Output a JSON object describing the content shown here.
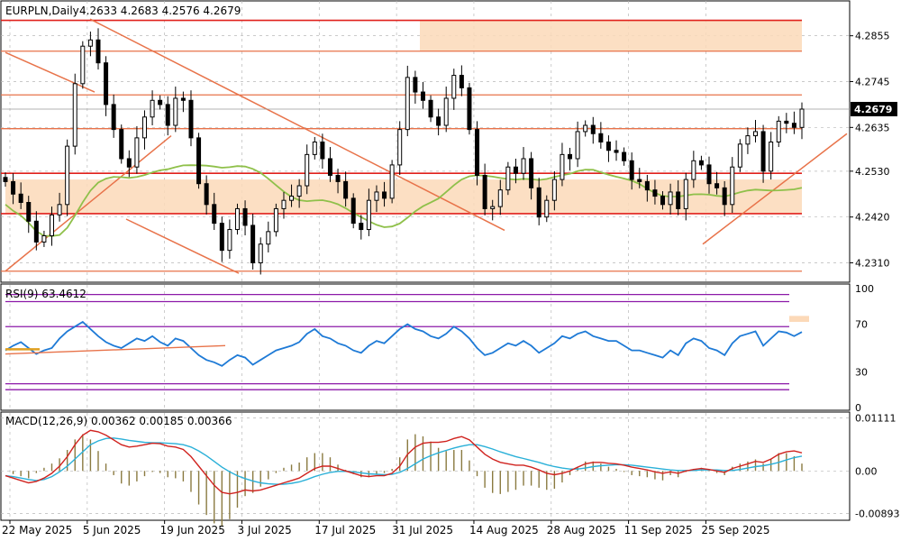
{
  "symbol_label": "EURPLN,Daily",
  "ohlc_label": "4.2633 4.2683 4.2576 4.2679",
  "colors": {
    "up": "#000000",
    "down": "#000000",
    "zone": "#fcd9b8",
    "level": "#e8734a",
    "red": "#e0201b",
    "ma": "#8fc04a",
    "rsi": "#1e7ad6",
    "purple": "#8c19a8",
    "macd_signal": "#2ab0d8",
    "macd_main": "#d0231f",
    "macd_hist": "#8a7a40",
    "grid": "#b8b8b8"
  },
  "chart_data": [
    {
      "type": "candlestick",
      "title": "EURPLN,Daily",
      "ylim": [
        4.227,
        4.293
      ],
      "y_ticks": [
        "4.2855",
        "4.2745",
        "4.2635",
        "4.2530",
        "4.2420",
        "4.2310"
      ],
      "current_price": "4.2679",
      "x_labels": [
        "22 May 2025",
        "5 Jun 2025",
        "19 Jun 2025",
        "3 Jul 2025",
        "17 Jul 2025",
        "31 Jul 2025",
        "14 Aug 2025",
        "28 Aug 2025",
        "11 Sep 2025",
        "25 Sep 2025"
      ],
      "close": [
        4.2505,
        4.2475,
        4.2455,
        4.241,
        4.236,
        4.2375,
        4.2425,
        4.245,
        4.259,
        4.274,
        4.283,
        4.2845,
        4.279,
        4.269,
        4.263,
        4.256,
        4.254,
        4.261,
        4.266,
        4.27,
        4.269,
        4.264,
        4.2705,
        4.27,
        4.261,
        4.25,
        4.245,
        4.2405,
        4.234,
        4.239,
        4.244,
        4.24,
        4.231,
        4.2355,
        4.2385,
        4.244,
        4.246,
        4.247,
        4.2495,
        4.257,
        4.26,
        4.256,
        4.252,
        4.2505,
        4.2465,
        4.2405,
        4.239,
        4.246,
        4.248,
        4.2465,
        4.2545,
        4.263,
        4.2755,
        4.272,
        4.27,
        4.266,
        4.264,
        4.2705,
        4.276,
        4.273,
        4.263,
        4.252,
        4.244,
        4.2445,
        4.2485,
        4.254,
        4.2525,
        4.256,
        4.249,
        4.242,
        4.246,
        4.251,
        4.257,
        4.256,
        4.2625,
        4.264,
        4.262,
        4.26,
        4.258,
        4.2575,
        4.2555,
        4.251,
        4.2505,
        4.2485,
        4.247,
        4.245,
        4.248,
        4.244,
        4.251,
        4.2555,
        4.2545,
        4.25,
        4.249,
        4.245,
        4.254,
        4.2595,
        4.2615,
        4.2625,
        4.253,
        4.26,
        4.265,
        4.2645,
        4.2635,
        4.2679
      ],
      "overlays": {
        "horizontal_levels": [
          4.2892,
          4.2818,
          4.2713,
          4.2632,
          4.2525,
          4.2428,
          4.229
        ],
        "resistance_zone": [
          4.2818,
          4.2892
        ],
        "support_zone": [
          4.2428,
          4.251
        ]
      }
    },
    {
      "type": "line",
      "title": "RSI(9) 63.4612",
      "ylim": [
        0,
        100
      ],
      "y_ticks": [
        "100",
        "70",
        "30",
        "0"
      ],
      "levels": [
        95,
        89,
        68,
        20,
        15
      ],
      "values": [
        48,
        52,
        55,
        50,
        45,
        48,
        50,
        58,
        64,
        68,
        72,
        66,
        60,
        55,
        52,
        50,
        54,
        58,
        56,
        60,
        55,
        52,
        58,
        56,
        50,
        44,
        40,
        38,
        35,
        40,
        44,
        42,
        36,
        40,
        44,
        48,
        50,
        52,
        55,
        62,
        66,
        60,
        58,
        54,
        52,
        48,
        46,
        52,
        56,
        54,
        60,
        66,
        70,
        66,
        64,
        60,
        58,
        62,
        68,
        64,
        58,
        50,
        44,
        46,
        50,
        54,
        52,
        56,
        52,
        46,
        50,
        54,
        60,
        58,
        62,
        64,
        60,
        58,
        56,
        56,
        52,
        48,
        48,
        46,
        44,
        42,
        48,
        44,
        54,
        58,
        56,
        50,
        48,
        44,
        54,
        60,
        62,
        64,
        52,
        58,
        64,
        63,
        60,
        63.46
      ]
    },
    {
      "type": "line",
      "title": "MACD(12,26,9) 0.00362 0.00185 0.00366",
      "ylim": [
        -0.0094,
        0.0114
      ],
      "y_ticks": [
        "0.01111",
        "0.00",
        "-0.00893"
      ],
      "main": [
        -0.001,
        -0.0015,
        -0.002,
        -0.0025,
        -0.0022,
        -0.0015,
        -0.0005,
        0.001,
        0.003,
        0.0055,
        0.0075,
        0.0085,
        0.0082,
        0.0075,
        0.0065,
        0.0055,
        0.005,
        0.0052,
        0.0055,
        0.0058,
        0.0057,
        0.0052,
        0.005,
        0.0045,
        0.003,
        0.001,
        -0.001,
        -0.003,
        -0.0045,
        -0.0048,
        -0.0045,
        -0.004,
        -0.0042,
        -0.004,
        -0.0035,
        -0.003,
        -0.0025,
        -0.002,
        -0.0015,
        -0.0005,
        0.0005,
        0.001,
        0.001,
        0.0005,
        0.0,
        -0.0005,
        -0.001,
        -0.0012,
        -0.001,
        -0.001,
        -0.0005,
        0.001,
        0.0035,
        0.005,
        0.0058,
        0.006,
        0.006,
        0.0062,
        0.0068,
        0.0072,
        0.0065,
        0.005,
        0.0035,
        0.0025,
        0.0018,
        0.0015,
        0.0012,
        0.0012,
        0.0008,
        0.0002,
        -0.0005,
        -0.0008,
        -0.0005,
        0.0,
        0.0008,
        0.0015,
        0.0018,
        0.0018,
        0.0016,
        0.0015,
        0.0012,
        0.0008,
        0.0005,
        0.0002,
        -0.0002,
        -0.0005,
        -0.0002,
        -0.0005,
        0.0,
        0.0003,
        0.0005,
        0.0003,
        0.0,
        -0.0003,
        0.0005,
        0.001,
        0.0015,
        0.002,
        0.0018,
        0.0025,
        0.0035,
        0.004,
        0.0042,
        0.0038
      ],
      "signal": [
        -0.001,
        -0.0012,
        -0.0015,
        -0.0018,
        -0.002,
        -0.0018,
        -0.0012,
        -0.0002,
        0.001,
        0.0025,
        0.004,
        0.0055,
        0.0063,
        0.0068,
        0.0069,
        0.0067,
        0.0064,
        0.0062,
        0.006,
        0.0059,
        0.0059,
        0.0058,
        0.0057,
        0.0055,
        0.005,
        0.0042,
        0.0032,
        0.002,
        0.0008,
        -0.0002,
        -0.001,
        -0.0016,
        -0.0021,
        -0.0025,
        -0.0027,
        -0.0028,
        -0.0028,
        -0.0026,
        -0.0023,
        -0.0018,
        -0.0012,
        -0.0007,
        -0.0003,
        -0.0001,
        -0.0001,
        -0.0002,
        -0.0004,
        -0.0006,
        -0.0007,
        -0.0008,
        -0.0007,
        -0.0003,
        0.0005,
        0.0015,
        0.0025,
        0.0032,
        0.0038,
        0.0043,
        0.0048,
        0.0052,
        0.0055,
        0.0055,
        0.0051,
        0.0046,
        0.004,
        0.0035,
        0.003,
        0.0026,
        0.0022,
        0.0018,
        0.0013,
        0.0009,
        0.0006,
        0.0004,
        0.0004,
        0.0006,
        0.0009,
        0.0011,
        0.0012,
        0.0013,
        0.0013,
        0.0012,
        0.001,
        0.0008,
        0.0006,
        0.0004,
        0.0002,
        0.0001,
        0.0001,
        0.0001,
        0.0002,
        0.0002,
        0.0002,
        0.0001,
        0.0001,
        0.0003,
        0.0006,
        0.0009,
        0.0011,
        0.0014,
        0.0018,
        0.0023,
        0.0028,
        0.0031
      ]
    }
  ]
}
